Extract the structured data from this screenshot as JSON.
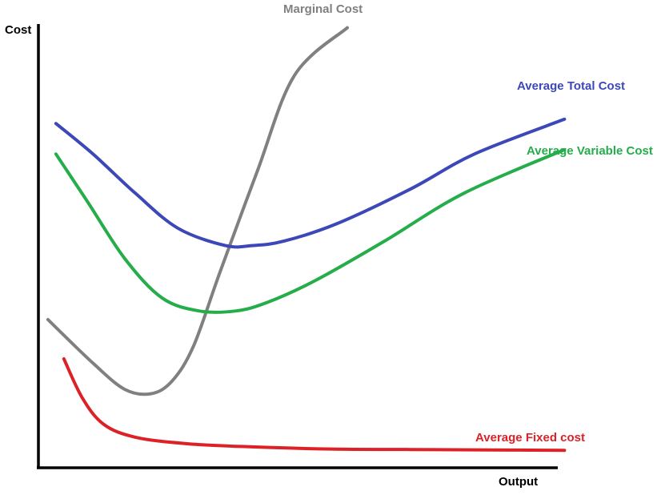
{
  "chart_data": {
    "type": "line",
    "title": "",
    "xlabel": "Output",
    "ylabel": "Cost",
    "xlim": [
      0,
      100
    ],
    "ylim": [
      0,
      100
    ],
    "grid": false,
    "series": [
      {
        "key": "mc",
        "name": "Marginal Cost",
        "color": "#808080",
        "x": [
          1.5,
          10,
          16,
          21,
          25,
          29,
          34,
          41,
          48,
          58
        ],
        "y": [
          34,
          24,
          18,
          17,
          20,
          28,
          45,
          68,
          90,
          101
        ]
      },
      {
        "key": "atc",
        "name": "Average Total Cost",
        "color": "#3d48b8",
        "x": [
          3,
          10,
          18,
          26,
          35,
          40,
          46,
          56,
          70,
          82,
          99
        ],
        "y": [
          79,
          72,
          63,
          55,
          51,
          51,
          52,
          56,
          64,
          72,
          80
        ]
      },
      {
        "key": "avc",
        "name": "Average Variable Cost",
        "color": "#25ad4a",
        "x": [
          3,
          9,
          16,
          23,
          30,
          37,
          43,
          52,
          65,
          80,
          99
        ],
        "y": [
          72,
          61,
          48,
          39,
          36,
          36,
          38,
          43,
          52,
          63,
          73
        ]
      },
      {
        "key": "afc",
        "name": "Average Fixed cost",
        "color": "#dc2127",
        "x": [
          4.5,
          8,
          12,
          18,
          28,
          40,
          55,
          70,
          85,
          99
        ],
        "y": [
          25,
          16,
          10,
          7,
          5.5,
          4.8,
          4.3,
          4.2,
          4.1,
          4
        ]
      }
    ]
  }
}
